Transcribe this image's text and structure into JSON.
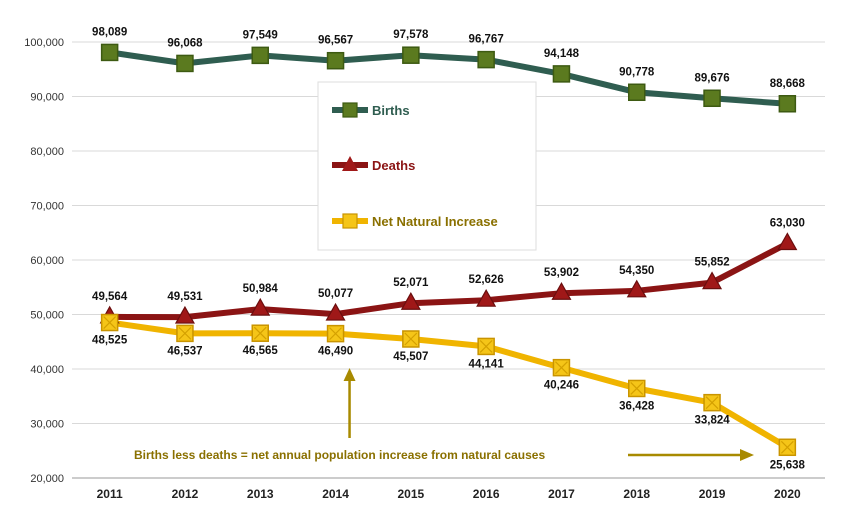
{
  "chart_data": {
    "type": "line",
    "categories": [
      "2011",
      "2012",
      "2013",
      "2014",
      "2015",
      "2016",
      "2017",
      "2018",
      "2019",
      "2020"
    ],
    "ylim": [
      20000,
      100000
    ],
    "yticks": [
      20000,
      30000,
      40000,
      50000,
      60000,
      70000,
      80000,
      90000,
      100000
    ],
    "ytick_labels": [
      "20,000",
      "30,000",
      "40,000",
      "50,000",
      "60,000",
      "70,000",
      "80,000",
      "90,000",
      "100,000"
    ],
    "grid": true,
    "legend_position": "center",
    "series": [
      {
        "name": "Births",
        "color": "#2f5d50",
        "marker_color": "#5b7a1f",
        "marker": "square",
        "values": [
          98089,
          96068,
          97549,
          96567,
          97578,
          96767,
          94148,
          90778,
          89676,
          88668
        ],
        "labels": [
          "98,089",
          "96,068",
          "97,549",
          "96,567",
          "97,578",
          "96,767",
          "94,148",
          "90,778",
          "89,676",
          "88,668"
        ]
      },
      {
        "name": "Deaths",
        "color": "#8b1414",
        "marker_color": "#a01818",
        "marker": "triangle",
        "values": [
          49564,
          49531,
          50984,
          50077,
          52071,
          52626,
          53902,
          54350,
          55852,
          63030
        ],
        "labels": [
          "49,564",
          "49,531",
          "50,984",
          "50,077",
          "52,071",
          "52,626",
          "53,902",
          "54,350",
          "55,852",
          "63,030"
        ]
      },
      {
        "name": "Net Natural Increase",
        "color": "#f0b400",
        "marker_color": "#f5c518",
        "marker": "square-x",
        "values": [
          48525,
          46537,
          46565,
          46490,
          45507,
          44141,
          40246,
          36428,
          33824,
          25638
        ],
        "labels": [
          "48,525",
          "46,537",
          "46,565",
          "46,490",
          "45,507",
          "44,141",
          "40,246",
          "36,428",
          "33,824",
          "25,638"
        ]
      }
    ],
    "annotation": {
      "text": "Births less deaths = net annual population increase from natural causes",
      "color": "#a88a00"
    }
  }
}
